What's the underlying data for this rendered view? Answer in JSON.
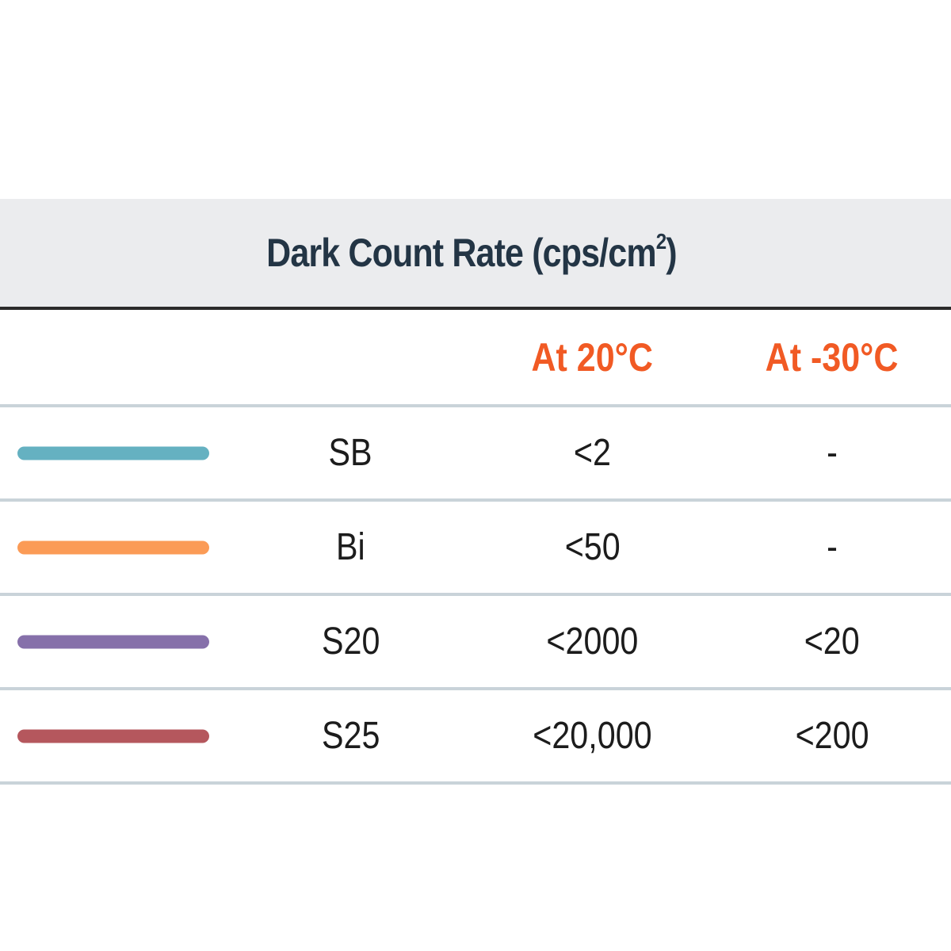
{
  "table": {
    "title_main": "Dark Count Rate (cps/cm",
    "title_sup": "2",
    "title_end": ")",
    "header": {
      "col_20": "At 20°C",
      "col_30": "At -30°C"
    },
    "rows": [
      {
        "name": "SB",
        "color": "#65b1c1",
        "at_20": "<2",
        "at_30": "-"
      },
      {
        "name": "Bi",
        "color": "#fb9b56",
        "at_20": "<50",
        "at_30": "-"
      },
      {
        "name": "S20",
        "color": "#8670aa",
        "at_20": "<2000",
        "at_30": "<20"
      },
      {
        "name": "S25",
        "color": "#b5575d",
        "at_20": "<20,000",
        "at_30": "<200"
      }
    ]
  },
  "colors": {
    "header_accent": "#f15a24",
    "title_text": "#233545",
    "title_band_bg": "#ebecee",
    "row_divider": "#c9d3d9"
  }
}
